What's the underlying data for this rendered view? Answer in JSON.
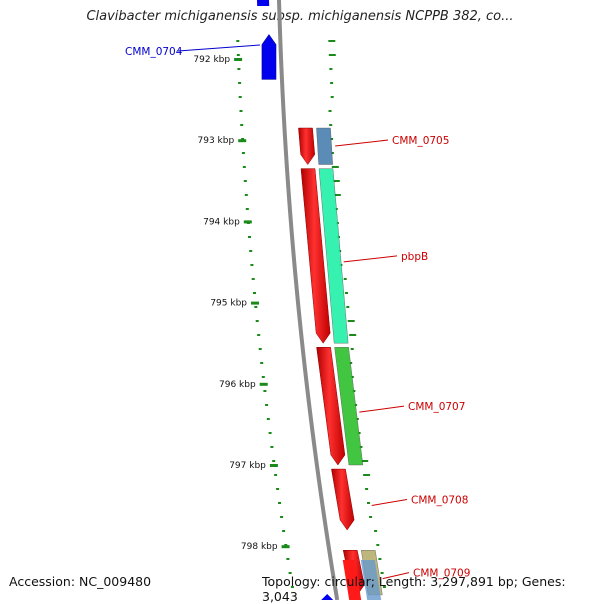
{
  "title": "Clavibacter michiganensis subsp. michiganensis NCPPB 382, co...",
  "footer": {
    "accession": "Accession: NC_009480",
    "topology": "Topology: circular; Length: 3,297,891 bp; Genes: 3,043"
  },
  "scale": {
    "unit": "kbp",
    "ticks": [
      {
        "value": 792,
        "label": "792 kbp"
      },
      {
        "value": 793,
        "label": "793 kbp"
      },
      {
        "value": 794,
        "label": "794 kbp"
      },
      {
        "value": 795,
        "label": "795 kbp"
      },
      {
        "value": 796,
        "label": "796 kbp"
      },
      {
        "value": 797,
        "label": "797 kbp"
      },
      {
        "value": 798,
        "label": "798 kbp"
      }
    ]
  },
  "genes": [
    {
      "id": "CMM_0704",
      "label": "CMM_0704",
      "strand": "reverse",
      "start": 791.7,
      "end": 792.25,
      "color": "#0000ee",
      "label_color": "#0000cc"
    },
    {
      "id": "CMM_0705",
      "label": "CMM_0705",
      "strand": "forward",
      "start": 792.85,
      "end": 793.3,
      "color": "#ff0000",
      "pair_color": "#4a7fb0",
      "label_color": "#cc0000"
    },
    {
      "id": "pbpB",
      "label": "pbpB",
      "strand": "forward",
      "start": 793.35,
      "end": 795.5,
      "color": "#ff0000",
      "pair_color": "#22f0a8",
      "label_color": "#cc0000"
    },
    {
      "id": "CMM_0707",
      "label": "CMM_0707",
      "strand": "forward",
      "start": 795.55,
      "end": 797.0,
      "color": "#ff0000",
      "pair_color": "#2ec02e",
      "label_color": "#cc0000"
    },
    {
      "id": "CMM_0708",
      "label": "CMM_0708",
      "strand": "forward",
      "start": 797.05,
      "end": 797.8,
      "color": "#ff0000",
      "label_color": "#cc0000"
    },
    {
      "id": "CMM_0709",
      "label": "CMM_0709",
      "strand": "forward",
      "start": 798.05,
      "end": 798.6,
      "color": "#ff0000",
      "pair_color": "#b8b070",
      "label_color": "#cc0000"
    }
  ],
  "colors": {
    "backbone": "#8a8a8a",
    "gc_ticks": "#1a8a1a"
  }
}
